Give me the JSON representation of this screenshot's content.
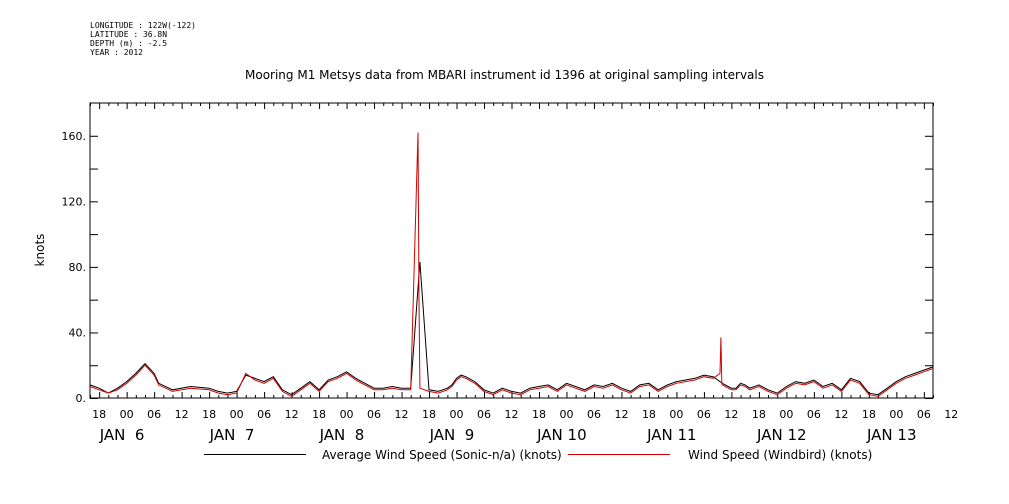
{
  "header": {
    "longitude": "LONGITUDE : 122W(-122)",
    "latitude": "LATITUDE : 36.8N",
    "depth": "DEPTH (m) : -2.5",
    "year": "YEAR : 2012"
  },
  "chart_data": {
    "type": "line",
    "title": "Mooring M1 Metsys data from MBARI instrument id 1396 at original sampling intervals",
    "ylabel": "knots",
    "xlabel": "",
    "ylim": [
      0,
      180
    ],
    "xlim_hours": [
      -8,
      176
    ],
    "yticks": [
      0,
      40,
      80,
      120,
      160
    ],
    "ytick_labels": [
      "0.",
      "40.",
      "80.",
      "120.",
      "160."
    ],
    "hour_ticks": [
      "18",
      "00",
      "06",
      "12",
      "18",
      "00",
      "06",
      "12",
      "18",
      "00",
      "06",
      "12",
      "18",
      "00",
      "06",
      "12",
      "18",
      "00",
      "06",
      "12",
      "18",
      "00",
      "06",
      "12",
      "18",
      "00",
      "06",
      "12",
      "18",
      "00",
      "06",
      "12"
    ],
    "day_labels": [
      "JAN  6",
      "JAN  7",
      "JAN  8",
      "JAN  9",
      "JAN 10",
      "JAN 11",
      "JAN 12",
      "JAN 13"
    ],
    "legend_position": "bottom",
    "series": [
      {
        "name": "Average Wind Speed (Sonic-n/a) (knots)",
        "color": "#000000",
        "x": [
          -8,
          -6,
          -4,
          -2,
          0,
          2,
          4,
          6,
          7,
          10,
          14,
          18,
          20,
          22,
          24,
          26,
          28,
          30,
          32,
          34,
          36,
          38,
          40,
          42,
          44,
          46,
          48,
          50,
          52,
          54,
          56,
          58,
          60,
          62,
          64,
          66,
          68,
          70,
          71,
          71.5,
          72,
          73,
          74,
          76,
          78,
          80,
          82,
          84,
          86,
          88,
          90,
          92,
          94,
          96,
          98,
          100,
          102,
          104,
          106,
          108,
          110,
          112,
          114,
          116,
          118,
          120,
          122,
          124,
          126,
          128,
          130,
          132,
          133,
          134,
          135,
          136,
          138,
          140,
          142,
          144,
          146,
          148,
          150,
          152,
          154,
          156,
          158,
          160,
          162,
          164,
          166,
          168,
          170,
          172,
          174,
          176
        ],
        "y": [
          8,
          6,
          3,
          6,
          10,
          15,
          21,
          15,
          9,
          5,
          7,
          6,
          4,
          3,
          4,
          14,
          12,
          10,
          13,
          5,
          2,
          6,
          10,
          5,
          11,
          13,
          16,
          12,
          9,
          6,
          6,
          7,
          6,
          6,
          83,
          5,
          4,
          6,
          8,
          10,
          12,
          14,
          13,
          10,
          5,
          3,
          6,
          4,
          3,
          6,
          7,
          8,
          5,
          9,
          7,
          5,
          8,
          7,
          9,
          6,
          4,
          8,
          9,
          5,
          8,
          10,
          11,
          12,
          14,
          13,
          9,
          6,
          6,
          9,
          8,
          6,
          8,
          5,
          3,
          7,
          10,
          9,
          11,
          7,
          9,
          5,
          12,
          10,
          3,
          2,
          6,
          10,
          13,
          15,
          17,
          19
        ]
      },
      {
        "name": "Wind Speed (Windbird) (knots)",
        "color": "#d40000",
        "x": [
          -8,
          -6,
          -4,
          -2,
          0,
          2,
          4,
          6,
          7,
          10,
          14,
          18,
          20,
          22,
          24,
          26,
          28,
          30,
          32,
          34,
          36,
          38,
          40,
          42,
          44,
          46,
          48,
          50,
          52,
          54,
          56,
          58,
          60,
          62,
          63.6,
          63.8,
          64,
          66,
          68,
          70,
          71,
          71.5,
          72,
          73,
          74,
          76,
          78,
          80,
          82,
          84,
          86,
          88,
          90,
          92,
          94,
          96,
          98,
          100,
          102,
          104,
          106,
          108,
          110,
          112,
          114,
          116,
          118,
          120,
          122,
          124,
          126,
          128,
          129.5,
          129.7,
          129.9,
          130,
          132,
          133,
          134,
          135,
          136,
          138,
          140,
          142,
          144,
          146,
          148,
          150,
          152,
          154,
          156,
          158,
          160,
          162,
          164,
          166,
          168,
          170,
          172,
          174,
          176
        ],
        "y": [
          7,
          5,
          3,
          5,
          9,
          14,
          20,
          14,
          8,
          4,
          6,
          5,
          3,
          2,
          3,
          15,
          11,
          9,
          12,
          4,
          1,
          5,
          9,
          4,
          10,
          12,
          15,
          11,
          8,
          5,
          5,
          6,
          5,
          5,
          162,
          60,
          6,
          4,
          3,
          5,
          7,
          9,
          11,
          13,
          12,
          9,
          4,
          2,
          5,
          3,
          2,
          5,
          6,
          7,
          4,
          8,
          6,
          4,
          7,
          6,
          8,
          5,
          3,
          7,
          8,
          4,
          7,
          9,
          10,
          11,
          13,
          12,
          15,
          37,
          10,
          8,
          5,
          5,
          8,
          7,
          5,
          7,
          4,
          2,
          6,
          9,
          8,
          10,
          6,
          8,
          4,
          11,
          9,
          2,
          1,
          5,
          9,
          12,
          14,
          16,
          18
        ]
      }
    ]
  }
}
